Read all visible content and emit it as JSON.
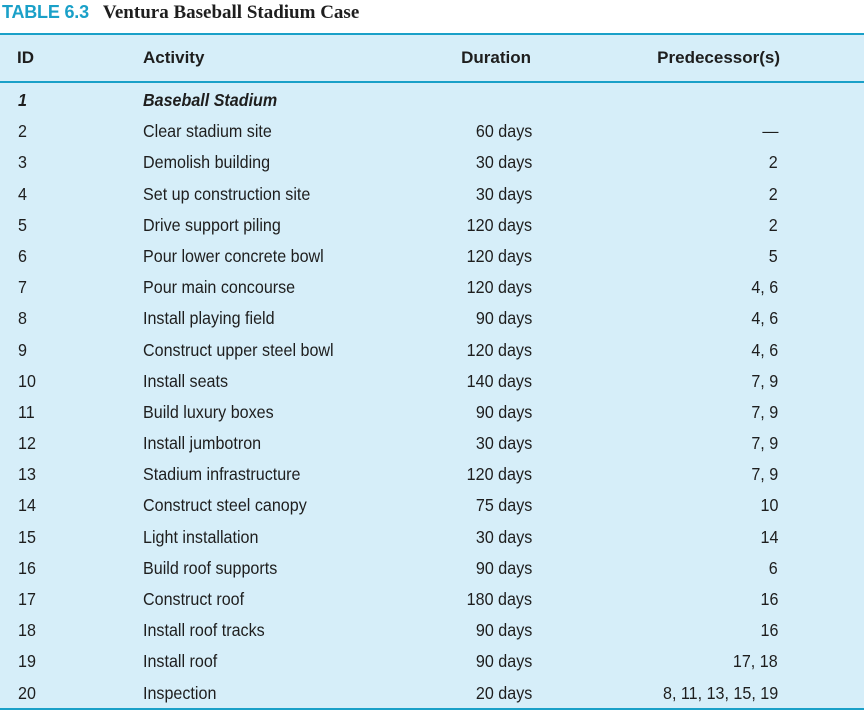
{
  "caption": {
    "label": "TABLE 6.3",
    "title": "Ventura Baseball Stadium Case"
  },
  "columns": {
    "id": "ID",
    "activity": "Activity",
    "duration": "Duration",
    "predecessors": "Predecessor(s)"
  },
  "rows": [
    {
      "id": "1",
      "activity": "Baseball Stadium",
      "duration": "",
      "predecessors": ""
    },
    {
      "id": "2",
      "activity": "Clear stadium site",
      "duration": "60 days",
      "predecessors": "—"
    },
    {
      "id": "3",
      "activity": "Demolish building",
      "duration": "30 days",
      "predecessors": "2"
    },
    {
      "id": "4",
      "activity": "Set up construction site",
      "duration": "30 days",
      "predecessors": "2"
    },
    {
      "id": "5",
      "activity": "Drive support piling",
      "duration": "120 days",
      "predecessors": "2"
    },
    {
      "id": "6",
      "activity": "Pour lower concrete bowl",
      "duration": "120 days",
      "predecessors": "5"
    },
    {
      "id": "7",
      "activity": "Pour main concourse",
      "duration": "120 days",
      "predecessors": "4, 6"
    },
    {
      "id": "8",
      "activity": "Install playing field",
      "duration": "90 days",
      "predecessors": "4, 6"
    },
    {
      "id": "9",
      "activity": "Construct upper steel bowl",
      "duration": "120 days",
      "predecessors": "4, 6"
    },
    {
      "id": "10",
      "activity": "Install seats",
      "duration": "140 days",
      "predecessors": "7, 9"
    },
    {
      "id": "11",
      "activity": "Build luxury boxes",
      "duration": "90 days",
      "predecessors": "7, 9"
    },
    {
      "id": "12",
      "activity": "Install jumbotron",
      "duration": "30 days",
      "predecessors": "7, 9"
    },
    {
      "id": "13",
      "activity": "Stadium infrastructure",
      "duration": "120 days",
      "predecessors": "7, 9"
    },
    {
      "id": "14",
      "activity": "Construct steel canopy",
      "duration": "75 days",
      "predecessors": "10"
    },
    {
      "id": "15",
      "activity": "Light installation",
      "duration": "30 days",
      "predecessors": "14"
    },
    {
      "id": "16",
      "activity": "Build roof supports",
      "duration": "90 days",
      "predecessors": "6"
    },
    {
      "id": "17",
      "activity": "Construct roof",
      "duration": "180 days",
      "predecessors": "16"
    },
    {
      "id": "18",
      "activity": "Install roof tracks",
      "duration": "90 days",
      "predecessors": "16"
    },
    {
      "id": "19",
      "activity": "Install roof",
      "duration": "90 days",
      "predecessors": "17, 18"
    },
    {
      "id": "20",
      "activity": "Inspection",
      "duration": "20 days",
      "predecessors": "8, 11, 13, 15, 19"
    }
  ]
}
